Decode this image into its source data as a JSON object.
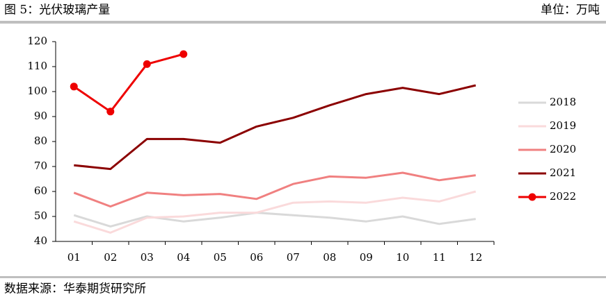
{
  "chart_data": {
    "type": "line",
    "title": "图 5：光伏玻璃产量",
    "unit": "单位：万吨",
    "source": "数据来源：华泰期货研究所",
    "categories": [
      "01",
      "02",
      "03",
      "04",
      "05",
      "06",
      "07",
      "08",
      "09",
      "10",
      "11",
      "12"
    ],
    "ylim": [
      40,
      120
    ],
    "yticks": [
      40,
      50,
      60,
      70,
      80,
      90,
      100,
      110,
      120
    ],
    "grid": false,
    "legend": "right",
    "series": [
      {
        "name": "2018",
        "color": "#d9d9d9",
        "values": [
          50.5,
          46,
          50,
          48,
          49.5,
          51.5,
          50.5,
          49.5,
          48,
          50,
          47,
          49
        ]
      },
      {
        "name": "2019",
        "color": "#fadadb",
        "values": [
          48,
          43.5,
          49.5,
          50,
          51.5,
          51.5,
          55.5,
          56,
          55.5,
          57.5,
          56,
          60
        ]
      },
      {
        "name": "2020",
        "color": "#f08080",
        "values": [
          59.5,
          54,
          59.5,
          58.5,
          59,
          57,
          63,
          66,
          65.5,
          67.5,
          64.5,
          66.5
        ]
      },
      {
        "name": "2021",
        "color": "#8b0000",
        "values": [
          70.5,
          69,
          81,
          81,
          79.5,
          86,
          89.5,
          94.5,
          99,
          101.5,
          99,
          102.5
        ]
      },
      {
        "name": "2022",
        "color": "#ee0000",
        "markers": true,
        "values": [
          102,
          92,
          111,
          115,
          null,
          null,
          null,
          null,
          null,
          null,
          null,
          null
        ]
      }
    ]
  }
}
